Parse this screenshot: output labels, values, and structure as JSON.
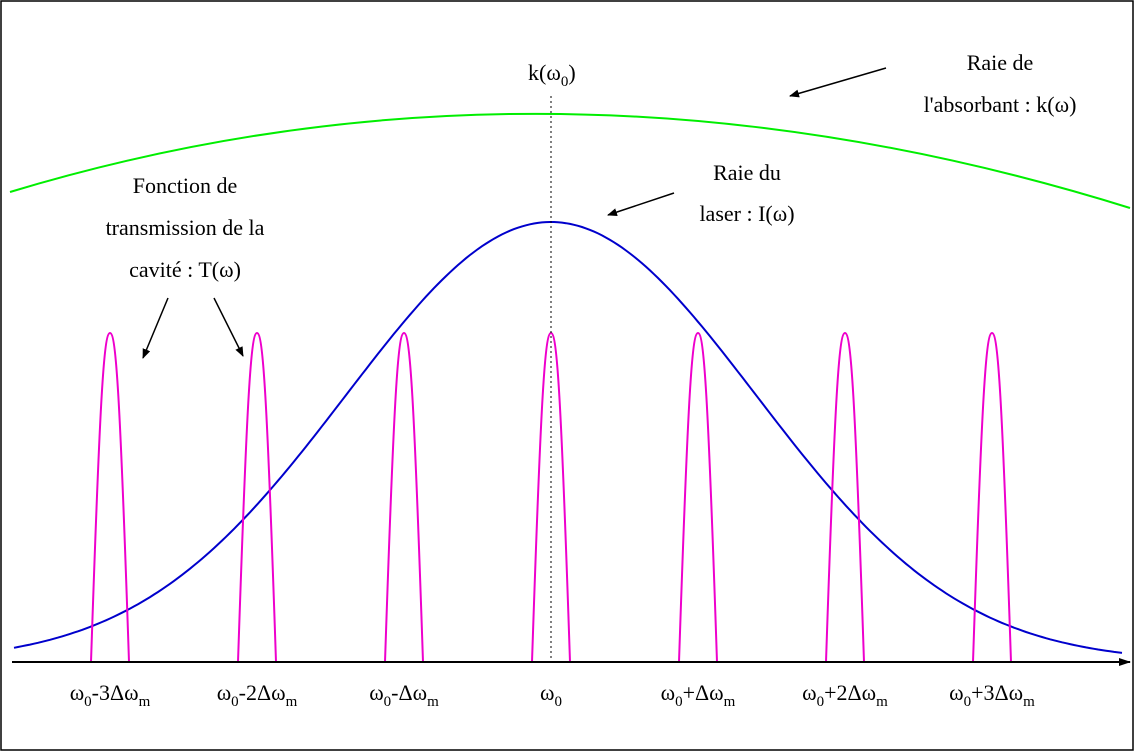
{
  "annotations": {
    "absorbant_line1": "Raie de",
    "absorbant_line2": "l'absorbant : k(ω)",
    "laser_line1": "Raie du",
    "laser_line2": "laser : I(ω)",
    "cavity_line1": "Fonction de",
    "cavity_line2": "transmission de la",
    "cavity_line3": "cavité : T(ω)",
    "center_k_prefix": "k(ω",
    "center_k_sub": "0",
    "center_k_suffix": ")"
  },
  "tick_labels": [
    {
      "pre": "ω",
      "sub0": "0",
      "mid": "-3Δω",
      "sub1": "m"
    },
    {
      "pre": "ω",
      "sub0": "0",
      "mid": "-2Δω",
      "sub1": "m"
    },
    {
      "pre": "ω",
      "sub0": "0",
      "mid": "-Δω",
      "sub1": "m"
    },
    {
      "pre": "ω",
      "sub0": "0",
      "mid": "",
      "sub1": ""
    },
    {
      "pre": "ω",
      "sub0": "0",
      "mid": "+Δω",
      "sub1": "m"
    },
    {
      "pre": "ω",
      "sub0": "0",
      "mid": "+2Δω",
      "sub1": "m"
    },
    {
      "pre": "ω",
      "sub0": "0",
      "mid": "+3Δω",
      "sub1": "m"
    }
  ],
  "cavity_mode_offsets": [
    -3,
    -2,
    -1,
    0,
    1,
    2,
    3
  ],
  "colors": {
    "absorbant": "#00ee00",
    "laser": "#0000cc",
    "cavity": "#ee00cc",
    "axis": "#000000"
  }
}
